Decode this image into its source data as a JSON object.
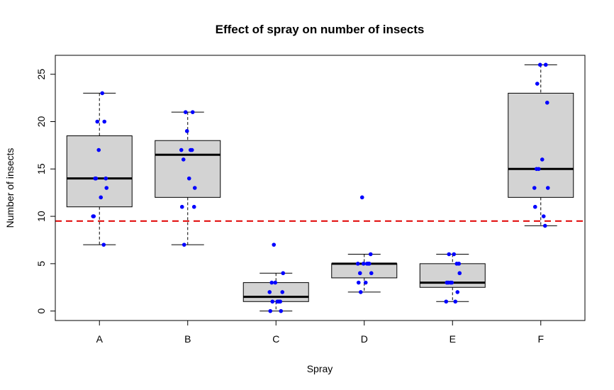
{
  "chart_data": {
    "type": "boxplot",
    "title": "Effect of spray on number of insects",
    "xlabel": "Spray",
    "ylabel": "Number of insects",
    "categories": [
      "A",
      "B",
      "C",
      "D",
      "E",
      "F"
    ],
    "ylim": [
      -1,
      27
    ],
    "yticks": [
      0,
      5,
      10,
      15,
      20,
      25
    ],
    "boxes": [
      {
        "category": "A",
        "min": 7,
        "q1": 11,
        "median": 14,
        "q3": 18.5,
        "max": 23
      },
      {
        "category": "B",
        "min": 7,
        "q1": 12,
        "median": 16.5,
        "q3": 18,
        "max": 21
      },
      {
        "category": "C",
        "min": 0,
        "q1": 1,
        "median": 1.5,
        "q3": 3,
        "max": 4
      },
      {
        "category": "D",
        "min": 2,
        "q1": 3.5,
        "median": 5,
        "q3": 5,
        "max": 6
      },
      {
        "category": "E",
        "min": 1,
        "q1": 2.5,
        "median": 3,
        "q3": 5,
        "max": 6
      },
      {
        "category": "F",
        "min": 9,
        "q1": 12,
        "median": 15,
        "q3": 23,
        "max": 26
      }
    ],
    "points": {
      "A": [
        10,
        7,
        20,
        14,
        14,
        12,
        10,
        23,
        17,
        20,
        14,
        13
      ],
      "B": [
        11,
        17,
        21,
        11,
        16,
        14,
        17,
        17,
        19,
        21,
        7,
        13
      ],
      "C": [
        0,
        1,
        7,
        2,
        3,
        1,
        2,
        1,
        3,
        0,
        1,
        4
      ],
      "D": [
        3,
        5,
        12,
        6,
        4,
        3,
        5,
        5,
        5,
        5,
        2,
        4
      ],
      "E": [
        3,
        5,
        3,
        5,
        3,
        6,
        1,
        1,
        3,
        2,
        6,
        4
      ],
      "F": [
        11,
        9,
        15,
        22,
        15,
        16,
        13,
        10,
        26,
        26,
        24,
        13
      ]
    },
    "reference_line": {
      "value": 9.5,
      "style": "dashed",
      "color": "#e00000"
    },
    "colors": {
      "box_fill": "#d3d3d3",
      "points": "#0000ff",
      "outline": "#000000"
    },
    "grid": false,
    "legend": "none"
  }
}
